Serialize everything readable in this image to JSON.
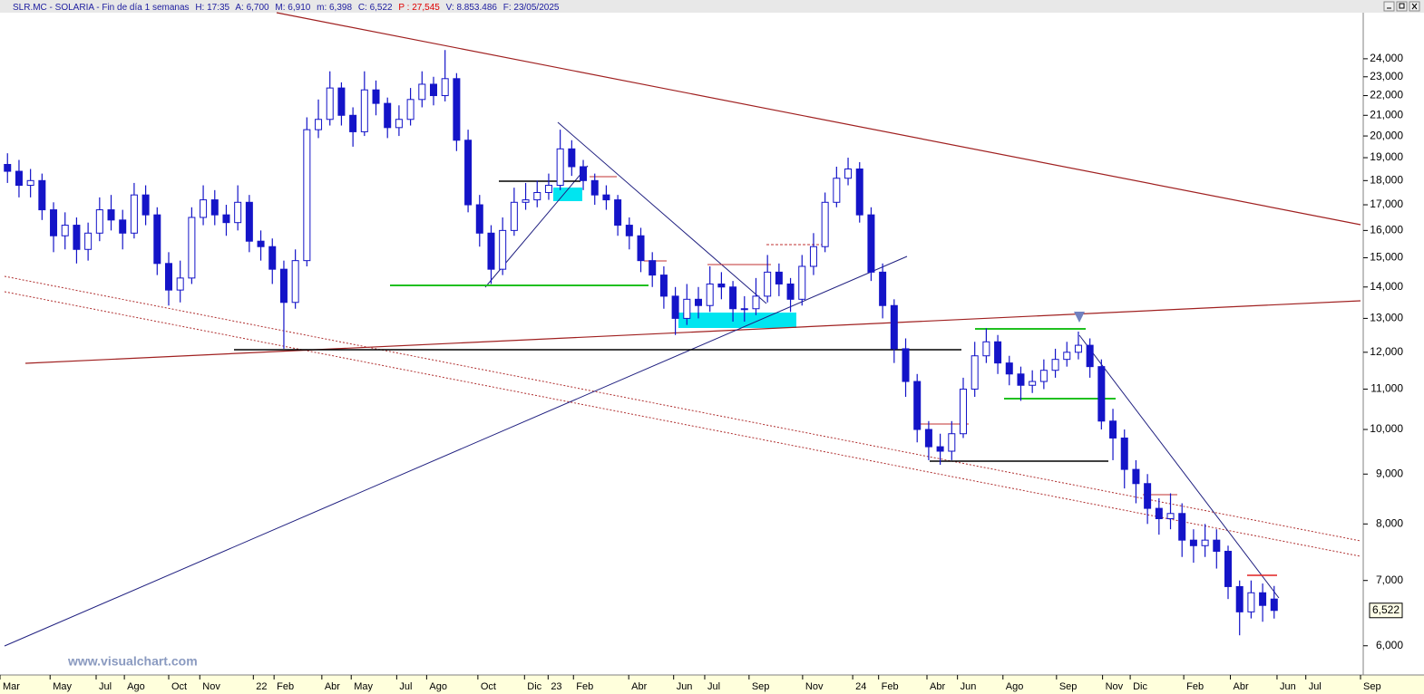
{
  "header": {
    "symbol": "SLR.MC - SOLARIA - Fin de día 1 semanas",
    "time": "H: 17:35",
    "open": "A: 6,700",
    "high": "M: 6,910",
    "low": "m: 6,398",
    "close": "C: 6,522",
    "change": "P : 27,545",
    "volume": "V: 8.853.486",
    "date": "F: 23/05/2025"
  },
  "watermark": "www.visualchart.com",
  "chart_data": {
    "type": "candlestick",
    "log": true,
    "color": "#1414c8",
    "x": [
      0,
      2,
      4,
      6,
      8,
      10,
      12,
      14,
      16,
      18,
      20,
      22,
      24,
      26,
      28,
      30,
      32,
      34,
      36,
      38,
      40,
      42,
      44,
      46,
      48,
      50,
      52,
      54,
      56,
      58,
      60,
      62,
      64,
      66,
      68,
      70,
      72,
      74,
      76,
      78,
      80,
      82,
      84,
      86,
      88,
      90,
      92,
      94,
      96,
      98,
      100,
      102,
      104,
      106,
      108,
      110,
      112,
      114,
      116,
      118,
      120,
      122,
      124,
      126,
      128,
      130,
      132,
      134,
      136,
      138,
      140,
      142,
      144,
      146,
      148,
      150,
      152,
      154,
      156,
      158,
      160,
      162,
      164,
      166,
      168,
      170,
      172,
      174,
      176,
      178,
      180,
      182,
      184,
      186,
      188,
      190,
      192,
      194,
      196,
      198,
      200,
      202,
      204,
      206,
      208,
      210,
      212,
      214,
      216,
      218,
      220
    ],
    "open": [
      18700,
      18400,
      17800,
      18000,
      16800,
      15800,
      16200,
      15300,
      15900,
      16800,
      16400,
      15900,
      17400,
      16600,
      14800,
      13900,
      14300,
      16500,
      17200,
      16600,
      16300,
      17100,
      15600,
      15400,
      14600,
      13500,
      14900,
      20300,
      20800,
      22400,
      21000,
      20200,
      22300,
      21600,
      20400,
      20800,
      21800,
      22600,
      22000,
      22900,
      19800,
      17000,
      15900,
      14600,
      16000,
      17100,
      17200,
      17500,
      17800,
      19400,
      18600,
      18000,
      17400,
      17200,
      16200,
      15800,
      14900,
      14400,
      13700,
      13000,
      13600,
      13400,
      14100,
      14000,
      13300,
      13300,
      13700,
      14500,
      14100,
      13600,
      14700,
      15400,
      17100,
      18100,
      18500,
      16600,
      14500,
      13400,
      12100,
      11200,
      10000,
      9600,
      9500,
      9900,
      11000,
      11900,
      12300,
      11700,
      11400,
      11100,
      11200,
      11500,
      11800,
      12000,
      12200,
      11600,
      10200,
      9800,
      9100,
      8800,
      8300,
      8100,
      8200,
      7700,
      7600,
      7700,
      7500,
      6900,
      6500,
      6800,
      6700
    ],
    "high": [
      19200,
      18900,
      18500,
      18300,
      17100,
      16700,
      16500,
      16300,
      17300,
      17400,
      16800,
      17900,
      17800,
      16900,
      15200,
      14900,
      16900,
      17800,
      17600,
      17000,
      17800,
      17400,
      16000,
      15700,
      14900,
      15300,
      20900,
      21800,
      23300,
      22700,
      21400,
      23300,
      22800,
      21900,
      21500,
      22400,
      23300,
      23000,
      24500,
      23200,
      20300,
      17400,
      16200,
      16500,
      17700,
      17900,
      18000,
      18300,
      20300,
      19800,
      18900,
      18300,
      17800,
      17400,
      16500,
      16100,
      15200,
      14700,
      14000,
      14100,
      14000,
      14700,
      14500,
      14200,
      13700,
      14300,
      15100,
      14800,
      14300,
      15100,
      15900,
      17500,
      18600,
      19000,
      18800,
      16900,
      14800,
      13600,
      12400,
      11400,
      10200,
      9900,
      10200,
      11300,
      12300,
      12700,
      12500,
      11900,
      11600,
      11500,
      11800,
      12100,
      12300,
      12600,
      12400,
      11800,
      10500,
      10000,
      9300,
      9000,
      8500,
      8600,
      8400,
      7900,
      8000,
      7900,
      7600,
      7000,
      7000,
      6950,
      6910
    ],
    "low": [
      17900,
      17300,
      17300,
      16400,
      15200,
      15300,
      14800,
      14900,
      15600,
      16000,
      15300,
      15700,
      16200,
      14400,
      13400,
      13500,
      14100,
      16200,
      16200,
      15800,
      16000,
      15200,
      14900,
      14100,
      12100,
      13300,
      14700,
      19900,
      20500,
      20500,
      19500,
      20000,
      21000,
      19900,
      20000,
      20500,
      21400,
      21500,
      21700,
      19300,
      16700,
      15400,
      14100,
      14400,
      15800,
      16800,
      16900,
      17200,
      17600,
      18200,
      17600,
      17000,
      16800,
      15800,
      15300,
      14500,
      14000,
      13300,
      12500,
      12800,
      13000,
      13200,
      13600,
      12900,
      12900,
      13100,
      13500,
      13700,
      13200,
      13400,
      14400,
      15200,
      16900,
      17800,
      16300,
      14200,
      13000,
      11700,
      10800,
      9700,
      9300,
      9200,
      9300,
      9800,
      10800,
      11700,
      11400,
      11100,
      10700,
      10900,
      11000,
      11300,
      11600,
      11800,
      11300,
      10000,
      9300,
      8700,
      8400,
      8000,
      7800,
      7900,
      7400,
      7300,
      7400,
      7200,
      6700,
      6150,
      6400,
      6350,
      6398
    ],
    "close": [
      18400,
      17800,
      18000,
      16800,
      15800,
      16200,
      15300,
      15900,
      16800,
      16400,
      15900,
      17400,
      16600,
      14800,
      13900,
      14300,
      16500,
      17200,
      16600,
      16300,
      17100,
      15600,
      15400,
      14600,
      13500,
      14900,
      20300,
      20800,
      22400,
      21000,
      20200,
      22300,
      21600,
      20400,
      20800,
      21800,
      22600,
      22000,
      22900,
      19800,
      17000,
      15900,
      14600,
      16000,
      17100,
      17200,
      17500,
      17800,
      19400,
      18600,
      18000,
      17400,
      17200,
      16200,
      15800,
      14900,
      14400,
      13700,
      13000,
      13600,
      13400,
      14100,
      14000,
      13300,
      13300,
      13700,
      14500,
      14100,
      13600,
      14700,
      15400,
      17100,
      18100,
      18500,
      16600,
      14500,
      13400,
      12100,
      11200,
      10000,
      9600,
      9500,
      9900,
      11000,
      11900,
      12300,
      11700,
      11400,
      11100,
      11200,
      11500,
      11800,
      12000,
      12200,
      11600,
      10200,
      9800,
      9100,
      8800,
      8300,
      8100,
      8200,
      7700,
      7600,
      7700,
      7500,
      6900,
      6500,
      6800,
      6600,
      6522
    ],
    "last_label": "6,522",
    "xlim": [
      -1.3,
      235.0
    ],
    "xticks": [
      {
        "value": -1.3,
        "label": "Mar"
      },
      {
        "value": 7.4,
        "label": "May"
      },
      {
        "value": 15.4,
        "label": "Jul"
      },
      {
        "value": 20.3,
        "label": "Ago"
      },
      {
        "value": 28.0,
        "label": "Oct"
      },
      {
        "value": 33.4,
        "label": "Nov"
      },
      {
        "value": 42.7,
        "label": "22"
      },
      {
        "value": 46.3,
        "label": "Feb"
      },
      {
        "value": 54.6,
        "label": "Abr"
      },
      {
        "value": 59.7,
        "label": "May"
      },
      {
        "value": 67.6,
        "label": "Jul"
      },
      {
        "value": 72.8,
        "label": "Ago"
      },
      {
        "value": 81.7,
        "label": "Oct"
      },
      {
        "value": 89.8,
        "label": "Dic"
      },
      {
        "value": 93.9,
        "label": "23"
      },
      {
        "value": 98.3,
        "label": "Feb"
      },
      {
        "value": 107.9,
        "label": "Abr"
      },
      {
        "value": 115.7,
        "label": "Jun"
      },
      {
        "value": 121.1,
        "label": "Jul"
      },
      {
        "value": 128.8,
        "label": "Sep"
      },
      {
        "value": 138.1,
        "label": "Nov"
      },
      {
        "value": 146.8,
        "label": "24"
      },
      {
        "value": 151.3,
        "label": "Feb"
      },
      {
        "value": 159.7,
        "label": "Abr"
      },
      {
        "value": 165.0,
        "label": "Jun"
      },
      {
        "value": 172.9,
        "label": "Ago"
      },
      {
        "value": 182.2,
        "label": "Sep"
      },
      {
        "value": 190.2,
        "label": "Nov"
      },
      {
        "value": 195.0,
        "label": "Dic"
      },
      {
        "value": 204.3,
        "label": "Feb"
      },
      {
        "value": 212.4,
        "label": "Abr"
      },
      {
        "value": 220.5,
        "label": "Jun"
      },
      {
        "value": 225.5,
        "label": "Jul"
      },
      {
        "value": 235.0,
        "label": "Sep"
      }
    ],
    "ylim": [
      5600,
      26760
    ],
    "yticks": [
      {
        "value": 6000,
        "label": "6,000"
      },
      {
        "value": 7000,
        "label": "7,000"
      },
      {
        "value": 8000,
        "label": "8,000"
      },
      {
        "value": 9000,
        "label": "9,000"
      },
      {
        "value": 10000,
        "label": "10,000"
      },
      {
        "value": 11000,
        "label": "11,000"
      },
      {
        "value": 12000,
        "label": "12,000"
      },
      {
        "value": 13000,
        "label": "13,000"
      },
      {
        "value": 14000,
        "label": "14,000"
      },
      {
        "value": 15000,
        "label": "15,000"
      },
      {
        "value": 16000,
        "label": "16,000"
      },
      {
        "value": 17000,
        "label": "17,000"
      },
      {
        "value": 18000,
        "label": "18,000"
      },
      {
        "value": 19000,
        "label": "19,000"
      },
      {
        "value": 20000,
        "label": "20,000"
      },
      {
        "value": 21000,
        "label": "21,000"
      },
      {
        "value": 22000,
        "label": "22,000"
      },
      {
        "value": 23000,
        "label": "23,000"
      },
      {
        "value": 24000,
        "label": "24,000"
      }
    ]
  }
}
